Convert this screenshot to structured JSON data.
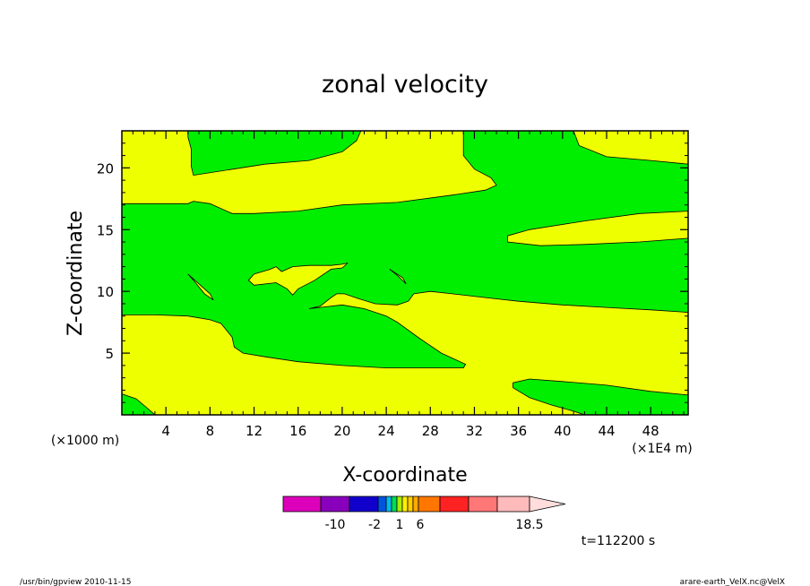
{
  "chart_data": {
    "type": "contour",
    "title": "zonal velocity",
    "xlabel": "X-coordinate",
    "ylabel": "Z-coordinate",
    "x_unit_left": "(×1000 m)",
    "x_unit_right": "(×1E4 m)",
    "xlim": [
      0,
      51.4
    ],
    "ylim": [
      0,
      23
    ],
    "x_ticks": [
      4,
      8,
      12,
      16,
      20,
      24,
      28,
      32,
      36,
      40,
      44,
      48
    ],
    "x_tick_labels": [
      "4",
      "8",
      "12",
      "16",
      "20",
      "24",
      "28",
      "32",
      "36",
      "40",
      "44",
      "48"
    ],
    "y_ticks": [
      5,
      10,
      15,
      20
    ],
    "y_tick_labels": [
      "5",
      "10",
      "15",
      "20"
    ],
    "fill_colors": {
      "positive": "#eeff00",
      "negative": "#00ee00"
    },
    "regions": [
      {
        "name": "yellow upper-left",
        "color": "positive",
        "points": [
          [
            0,
            17.1
          ],
          [
            6,
            17.1
          ],
          [
            6.5,
            17.3
          ],
          [
            8,
            17.1
          ],
          [
            10,
            16.3
          ],
          [
            12,
            16.3
          ],
          [
            16,
            16.5
          ],
          [
            20,
            17
          ],
          [
            25,
            17.2
          ],
          [
            30,
            17.8
          ],
          [
            33,
            18.2
          ],
          [
            34,
            18.6
          ],
          [
            33.5,
            19.2
          ],
          [
            32,
            19.9
          ],
          [
            31,
            21
          ],
          [
            31,
            23
          ],
          [
            21.7,
            23
          ],
          [
            21.3,
            22.2
          ],
          [
            20,
            21.3
          ],
          [
            17,
            20.6
          ],
          [
            13,
            20.3
          ],
          [
            6.5,
            19.4
          ],
          [
            6.3,
            20.1
          ],
          [
            6.3,
            21.5
          ],
          [
            6,
            22.5
          ],
          [
            6,
            23
          ],
          [
            0,
            23
          ]
        ]
      },
      {
        "name": "yellow top-right",
        "color": "positive",
        "points": [
          [
            41,
            23
          ],
          [
            51.4,
            23
          ],
          [
            51.4,
            20.3
          ],
          [
            48,
            20.6
          ],
          [
            44,
            20.9
          ],
          [
            41.5,
            21.8
          ]
        ]
      },
      {
        "name": "yellow right band",
        "color": "positive",
        "points": [
          [
            51.4,
            16.5
          ],
          [
            47,
            16.3
          ],
          [
            42,
            15.7
          ],
          [
            37,
            15
          ],
          [
            35,
            14.5
          ],
          [
            35,
            14
          ],
          [
            38,
            13.7
          ],
          [
            42,
            13.8
          ],
          [
            47,
            14
          ],
          [
            51.4,
            14.3
          ]
        ]
      },
      {
        "name": "yellow lower",
        "color": "positive",
        "points": [
          [
            0,
            8.1
          ],
          [
            3,
            8.1
          ],
          [
            6,
            8
          ],
          [
            8,
            7.7
          ],
          [
            9,
            7.4
          ],
          [
            10,
            6.3
          ],
          [
            10.2,
            5.5
          ],
          [
            11,
            5
          ],
          [
            13,
            4.7
          ],
          [
            16,
            4.3
          ],
          [
            20,
            4
          ],
          [
            24,
            3.8
          ],
          [
            28,
            3.8
          ],
          [
            31,
            3.8
          ],
          [
            31.2,
            4.1
          ],
          [
            29,
            5
          ],
          [
            27,
            6.2
          ],
          [
            25,
            7.5
          ],
          [
            24,
            8
          ],
          [
            22,
            8.6
          ],
          [
            20,
            8.9
          ],
          [
            18,
            8.7
          ],
          [
            17,
            8.6
          ],
          [
            18,
            8.8
          ],
          [
            19,
            9.5
          ],
          [
            19.5,
            9.8
          ],
          [
            20.2,
            9.8
          ],
          [
            21.5,
            9.4
          ],
          [
            23,
            9
          ],
          [
            25,
            8.9
          ],
          [
            26,
            9.2
          ],
          [
            26.5,
            9.8
          ],
          [
            28,
            10
          ],
          [
            30,
            9.8
          ],
          [
            33,
            9.5
          ],
          [
            36,
            9.2
          ],
          [
            40,
            8.9
          ],
          [
            44,
            8.7
          ],
          [
            48,
            8.5
          ],
          [
            51.4,
            8.3
          ],
          [
            51.4,
            1.6
          ],
          [
            48,
            1.9
          ],
          [
            44,
            2.4
          ],
          [
            40,
            2.7
          ],
          [
            37,
            2.9
          ],
          [
            35.5,
            2.6
          ],
          [
            35.5,
            2.2
          ],
          [
            37,
            1.4
          ],
          [
            39,
            0.8
          ],
          [
            41,
            0.3
          ],
          [
            42,
            0
          ],
          [
            0,
            0
          ]
        ]
      },
      {
        "name": "green bottom-left",
        "color": "negative",
        "points": [
          [
            0,
            1.7
          ],
          [
            1.3,
            1.3
          ],
          [
            2.5,
            0.4
          ],
          [
            3,
            0
          ],
          [
            0,
            0
          ]
        ]
      },
      {
        "name": "yellow blob",
        "color": "positive",
        "points": [
          [
            11.5,
            10.9
          ],
          [
            12,
            11.4
          ],
          [
            13.5,
            11.8
          ],
          [
            14,
            12
          ],
          [
            14.5,
            11.6
          ],
          [
            15.5,
            12
          ],
          [
            17,
            12.1
          ],
          [
            19,
            12.1
          ],
          [
            20,
            12.2
          ],
          [
            20.5,
            12.3
          ],
          [
            20,
            11.9
          ],
          [
            19,
            11.8
          ],
          [
            17.5,
            10.9
          ],
          [
            16,
            10.2
          ],
          [
            15.5,
            9.7
          ],
          [
            15,
            10.2
          ],
          [
            14,
            10.7
          ],
          [
            12,
            10.5
          ]
        ]
      },
      {
        "name": "yellow sliver left",
        "color": "positive",
        "points": [
          [
            6,
            11.4
          ],
          [
            6.5,
            10.9
          ],
          [
            7.5,
            9.8
          ],
          [
            8.3,
            9.3
          ],
          [
            8,
            9.8
          ],
          [
            7,
            10.6
          ]
        ]
      },
      {
        "name": "yellow sliver right",
        "color": "positive",
        "points": [
          [
            24.3,
            11.8
          ],
          [
            25,
            11.3
          ],
          [
            25.8,
            10.6
          ],
          [
            25.5,
            11.1
          ]
        ]
      }
    ],
    "colorbar": {
      "colors": [
        "#dd00bb",
        "#8800bb",
        "#1100cc",
        "#0055dd",
        "#00bbee",
        "#00dd55",
        "#aaee00",
        "#ffee00",
        "#ffcc00",
        "#ffaa00",
        "#ff7700",
        "#ff2222",
        "#ff7777",
        "#ffbbbb",
        "#ffdddd"
      ],
      "labels": [
        "-10",
        "-2",
        "1",
        "6",
        "18.5"
      ]
    },
    "time_label": "t=112200 s"
  },
  "footer": {
    "left": "/usr/bin/gpview   2010-11-15",
    "right": "arare-earth_VelX.nc@VelX"
  }
}
